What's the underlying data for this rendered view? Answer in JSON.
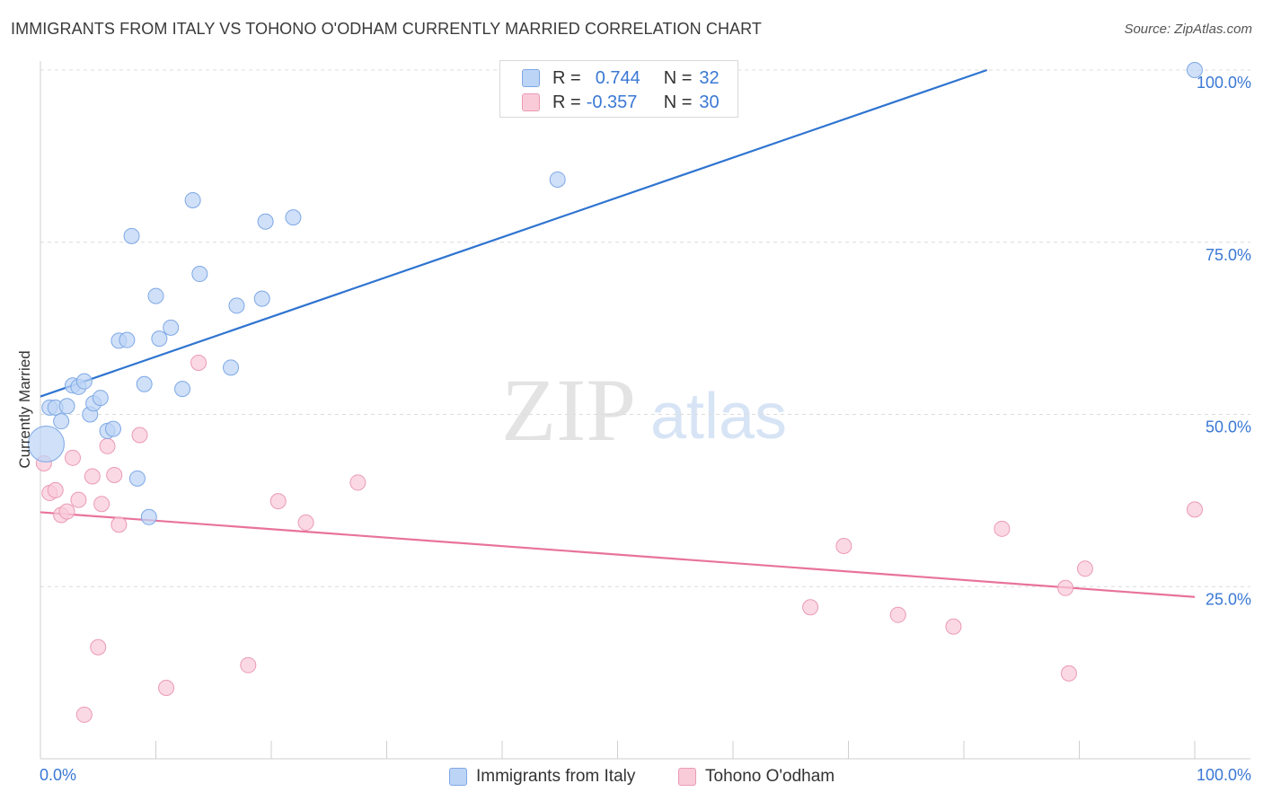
{
  "header": {
    "title": "IMMIGRANTS FROM ITALY VS TOHONO O'ODHAM CURRENTLY MARRIED CORRELATION CHART",
    "source": "Source: ZipAtlas.com"
  },
  "watermark": {
    "zip": "ZIP",
    "atlas": "atlas"
  },
  "legend": {
    "rows": [
      {
        "r_label": "R =",
        "r_value": "0.744",
        "n_label": "N =",
        "n_value": "32"
      },
      {
        "r_label": "R =",
        "r_value": "-0.357",
        "n_label": "N =",
        "n_value": "30"
      }
    ]
  },
  "bottom_legend": {
    "items": [
      "Immigrants from Italy",
      "Tohono O'odham"
    ]
  },
  "colors": {
    "blue_fill": "#bcd4f5",
    "blue_stroke": "#7ea8e6",
    "blue_line": "#2f74d0",
    "pink_fill": "#f9cbd9",
    "pink_stroke": "#eb9ab3",
    "pink_line": "#e8739b",
    "tick_label": "#3a78d4"
  },
  "chart_data": {
    "type": "scatter",
    "title": "IMMIGRANTS FROM ITALY VS TOHONO O'ODHAM CURRENTLY MARRIED CORRELATION CHART",
    "xlabel": "",
    "ylabel": "Currently Married",
    "xlim": [
      0,
      100
    ],
    "ylim": [
      0,
      100
    ],
    "x_tick_labels": [
      "0.0%",
      "100.0%"
    ],
    "y_ticks": [
      25,
      50,
      75,
      100
    ],
    "y_tick_labels": [
      "25.0%",
      "50.0%",
      "75.0%",
      "100.0%"
    ],
    "grid": "horizontal dashed",
    "legend_position": "top-center",
    "series": [
      {
        "name": "Immigrants from Italy",
        "color": "#2f74d0",
        "trend": {
          "x": [
            0,
            82
          ],
          "y": [
            52.6,
            100
          ]
        },
        "points": [
          {
            "x": 0.5,
            "y": 45.7,
            "big": true
          },
          {
            "x": 0.8,
            "y": 51.0
          },
          {
            "x": 1.3,
            "y": 51.0
          },
          {
            "x": 1.8,
            "y": 49.0
          },
          {
            "x": 2.3,
            "y": 51.2
          },
          {
            "x": 2.8,
            "y": 54.2
          },
          {
            "x": 3.3,
            "y": 54.0
          },
          {
            "x": 3.8,
            "y": 54.8
          },
          {
            "x": 4.3,
            "y": 50.0
          },
          {
            "x": 4.6,
            "y": 51.6
          },
          {
            "x": 5.2,
            "y": 52.4
          },
          {
            "x": 5.8,
            "y": 47.6
          },
          {
            "x": 6.3,
            "y": 47.9
          },
          {
            "x": 6.8,
            "y": 60.7
          },
          {
            "x": 7.5,
            "y": 60.8
          },
          {
            "x": 7.9,
            "y": 75.9
          },
          {
            "x": 8.4,
            "y": 40.7
          },
          {
            "x": 9.0,
            "y": 54.4
          },
          {
            "x": 9.4,
            "y": 35.1
          },
          {
            "x": 10.0,
            "y": 67.2
          },
          {
            "x": 10.3,
            "y": 61.0
          },
          {
            "x": 11.3,
            "y": 62.6
          },
          {
            "x": 12.3,
            "y": 53.7
          },
          {
            "x": 13.2,
            "y": 81.1
          },
          {
            "x": 13.8,
            "y": 70.4
          },
          {
            "x": 16.5,
            "y": 56.8
          },
          {
            "x": 17.0,
            "y": 65.8
          },
          {
            "x": 19.2,
            "y": 66.8
          },
          {
            "x": 19.5,
            "y": 78.0
          },
          {
            "x": 21.9,
            "y": 78.6
          },
          {
            "x": 44.8,
            "y": 84.1
          },
          {
            "x": 100.0,
            "y": 100.0
          }
        ]
      },
      {
        "name": "Tohono O'odham",
        "color": "#e8739b",
        "trend": {
          "x": [
            0,
            100
          ],
          "y": [
            35.8,
            23.5
          ]
        },
        "points": [
          {
            "x": 0.3,
            "y": 42.9
          },
          {
            "x": 0.8,
            "y": 38.6
          },
          {
            "x": 1.3,
            "y": 39.0
          },
          {
            "x": 1.8,
            "y": 35.4
          },
          {
            "x": 2.3,
            "y": 35.9
          },
          {
            "x": 2.8,
            "y": 43.7
          },
          {
            "x": 3.3,
            "y": 37.6
          },
          {
            "x": 3.8,
            "y": 6.4
          },
          {
            "x": 4.5,
            "y": 41.0
          },
          {
            "x": 5.0,
            "y": 16.2
          },
          {
            "x": 5.3,
            "y": 37.0
          },
          {
            "x": 5.8,
            "y": 45.4
          },
          {
            "x": 6.4,
            "y": 41.2
          },
          {
            "x": 6.8,
            "y": 34.0
          },
          {
            "x": 8.6,
            "y": 47.0
          },
          {
            "x": 10.9,
            "y": 10.3
          },
          {
            "x": 13.7,
            "y": 57.5
          },
          {
            "x": 18.0,
            "y": 13.6
          },
          {
            "x": 20.6,
            "y": 37.4
          },
          {
            "x": 23.0,
            "y": 34.3
          },
          {
            "x": 27.5,
            "y": 40.1
          },
          {
            "x": 66.7,
            "y": 22.0
          },
          {
            "x": 69.6,
            "y": 30.9
          },
          {
            "x": 74.3,
            "y": 20.9
          },
          {
            "x": 79.1,
            "y": 19.2
          },
          {
            "x": 83.3,
            "y": 33.4
          },
          {
            "x": 88.8,
            "y": 24.8
          },
          {
            "x": 89.1,
            "y": 12.4
          },
          {
            "x": 90.5,
            "y": 27.6
          },
          {
            "x": 100.0,
            "y": 36.2
          }
        ]
      }
    ]
  }
}
